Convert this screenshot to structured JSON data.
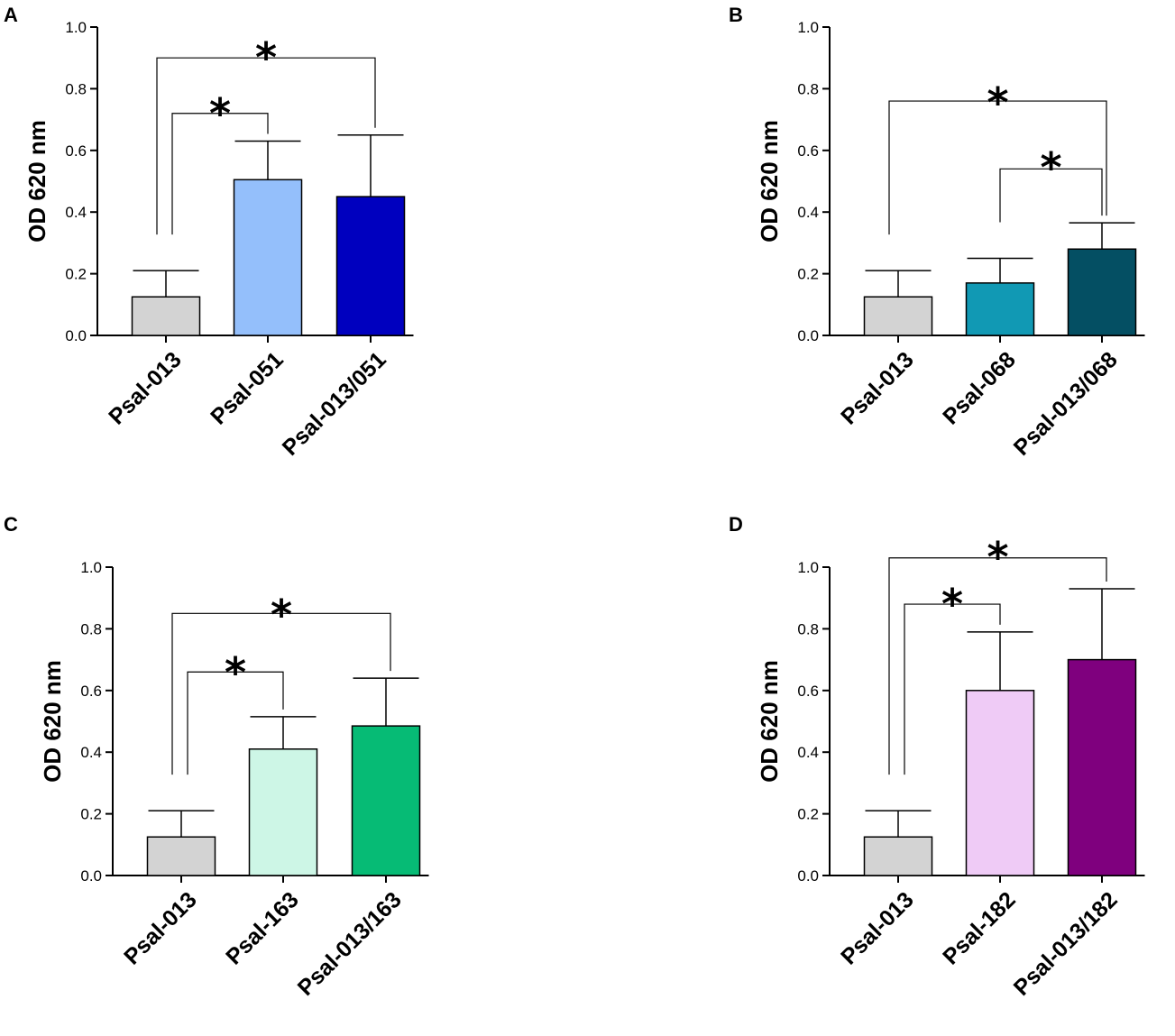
{
  "chart_data": [
    {
      "panel": "A",
      "type": "bar",
      "ylabel": "OD 620 nm",
      "xlabel": "",
      "ylim": [
        0,
        1.0
      ],
      "yticks": [
        "0.0",
        "0.2",
        "0.4",
        "0.6",
        "0.8",
        "1.0"
      ],
      "categories": [
        "Psal-013",
        "Psal-051",
        "Psal-013/051"
      ],
      "values": [
        0.125,
        0.505,
        0.45
      ],
      "errors": [
        0.085,
        0.125,
        0.2
      ],
      "colors": [
        "#d3d3d3",
        "#94bffb",
        "#0000bf"
      ],
      "significance": [
        {
          "from": 0,
          "to": 1,
          "label": "*"
        },
        {
          "from": 0,
          "to": 2,
          "label": "*"
        }
      ]
    },
    {
      "panel": "B",
      "type": "bar",
      "ylabel": "OD 620 nm",
      "xlabel": "",
      "ylim": [
        0,
        1.0
      ],
      "yticks": [
        "0.0",
        "0.2",
        "0.4",
        "0.6",
        "0.8",
        "1.0"
      ],
      "categories": [
        "Psal-013",
        "Psal-068",
        "Psal-013/068"
      ],
      "values": [
        0.125,
        0.17,
        0.28
      ],
      "errors": [
        0.085,
        0.08,
        0.085
      ],
      "colors": [
        "#d3d3d3",
        "#1199b4",
        "#044f63"
      ],
      "significance": [
        {
          "from": 1,
          "to": 2,
          "label": "*"
        },
        {
          "from": 0,
          "to": 2,
          "label": "*"
        }
      ]
    },
    {
      "panel": "C",
      "type": "bar",
      "ylabel": "OD 620 nm",
      "xlabel": "",
      "ylim": [
        0,
        1.0
      ],
      "yticks": [
        "0.0",
        "0.2",
        "0.4",
        "0.6",
        "0.8",
        "1.0"
      ],
      "categories": [
        "Psal-013",
        "Psal-163",
        "Psal-013/163"
      ],
      "values": [
        0.125,
        0.41,
        0.485
      ],
      "errors": [
        0.085,
        0.105,
        0.155
      ],
      "colors": [
        "#d3d3d3",
        "#cdf6e6",
        "#06bb75"
      ],
      "significance": [
        {
          "from": 0,
          "to": 1,
          "label": "*"
        },
        {
          "from": 0,
          "to": 2,
          "label": "*"
        }
      ]
    },
    {
      "panel": "D",
      "type": "bar",
      "ylabel": "OD 620 nm",
      "xlabel": "",
      "ylim": [
        0,
        1.0
      ],
      "yticks": [
        "0.0",
        "0.2",
        "0.4",
        "0.6",
        "0.8",
        "1.0"
      ],
      "categories": [
        "Psal-013",
        "Psal-182",
        "Psal-013/182"
      ],
      "values": [
        0.125,
        0.6,
        0.7
      ],
      "errors": [
        0.085,
        0.19,
        0.23
      ],
      "colors": [
        "#d3d3d3",
        "#efcbf6",
        "#7f007e"
      ],
      "significance": [
        {
          "from": 0,
          "to": 1,
          "label": "*"
        },
        {
          "from": 0,
          "to": 2,
          "label": "*"
        }
      ]
    }
  ]
}
